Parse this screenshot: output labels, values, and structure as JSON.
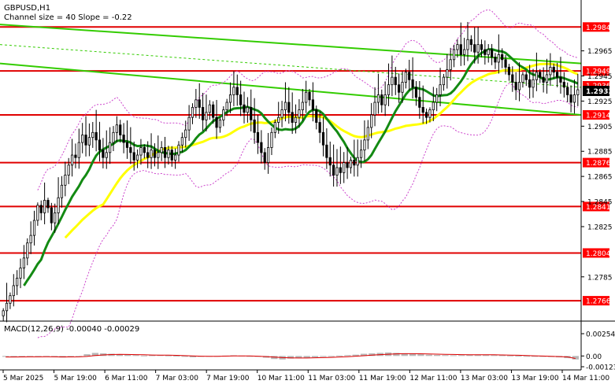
{
  "header": {
    "symbol_label": "GBPUSD,H1",
    "channel_label": "Channel size = 40 Slope = -0.22"
  },
  "colors": {
    "background": "#ffffff",
    "candle": "#000000",
    "level_line": "#e00000",
    "level_box": "#ff0000",
    "channel": "#33cc00",
    "ma_fast": "#138a13",
    "ma_slow": "#ffff00",
    "bollinger": "#cc44cc",
    "current_price_box": "#000000",
    "macd_hist": "#b8b8b8",
    "macd_signal": "#dd0000"
  },
  "chart_data": [
    {
      "type": "candlestick",
      "title": "GBPUSD,H1",
      "annotation": "Channel size = 40 Slope = -0.22",
      "ylim": [
        1.2751,
        1.3003
      ],
      "x_ticks": [
        "5 Mar 2025",
        "5 Mar 19:00",
        "6 Mar 11:00",
        "7 Mar 03:00",
        "7 Mar 19:00",
        "10 Mar 11:00",
        "11 Mar 03:00",
        "11 Mar 19:00",
        "12 Mar 11:00",
        "13 Mar 03:00",
        "13 Mar 19:00",
        "14 Mar 11:00"
      ],
      "y_ticks": [
        1.2965,
        1.2945,
        1.2925,
        1.2905,
        1.2885,
        1.2865,
        1.2845,
        1.2825,
        1.2785
      ],
      "levels": [
        1.2984,
        1.2949,
        1.2914,
        1.2876,
        1.2841,
        1.2804,
        1.2766
      ],
      "current_price": 1.2933,
      "hidden_price": 1.2936,
      "close_series": [
        1.2758,
        1.2764,
        1.277,
        1.2778,
        1.2784,
        1.2792,
        1.28,
        1.2812,
        1.2818,
        1.283,
        1.2842,
        1.2836,
        1.2846,
        1.284,
        1.2828,
        1.2836,
        1.2848,
        1.2858,
        1.2866,
        1.2874,
        1.2882,
        1.288,
        1.2892,
        1.2898,
        1.289,
        1.2896,
        1.29,
        1.2894,
        1.2886,
        1.288,
        1.2884,
        1.2892,
        1.29,
        1.2906,
        1.2898,
        1.2892,
        1.2888,
        1.2884,
        1.2878,
        1.2882,
        1.2888,
        1.2884,
        1.288,
        1.2886,
        1.288,
        1.2884,
        1.2888,
        1.288,
        1.2886,
        1.2878,
        1.2882,
        1.289,
        1.2896,
        1.2902,
        1.2912,
        1.292,
        1.2926,
        1.292,
        1.291,
        1.2916,
        1.2922,
        1.2912,
        1.2904,
        1.291,
        1.2918,
        1.2924,
        1.293,
        1.2936,
        1.293,
        1.2922,
        1.2916,
        1.292,
        1.291,
        1.29,
        1.2892,
        1.2884,
        1.2876,
        1.2888,
        1.29,
        1.2908,
        1.2912,
        1.2918,
        1.2924,
        1.2916,
        1.2908,
        1.2912,
        1.2918,
        1.2924,
        1.2932,
        1.2926,
        1.2918,
        1.2908,
        1.29,
        1.289,
        1.288,
        1.2874,
        1.2866,
        1.2872,
        1.2868,
        1.2876,
        1.2872,
        1.2878,
        1.2874,
        1.288,
        1.2886,
        1.2894,
        1.2904,
        1.2914,
        1.2924,
        1.293,
        1.2922,
        1.293,
        1.2938,
        1.2944,
        1.2938,
        1.2932,
        1.294,
        1.2948,
        1.2942,
        1.2936,
        1.2928,
        1.292,
        1.2916,
        1.2912,
        1.2918,
        1.2924,
        1.293,
        1.2938,
        1.2944,
        1.295,
        1.2958,
        1.2966,
        1.297,
        1.2962,
        1.2966,
        1.2974,
        1.297,
        1.2964,
        1.297,
        1.2966,
        1.2962,
        1.2966,
        1.296,
        1.2956,
        1.2962,
        1.2958,
        1.2952,
        1.2946,
        1.294,
        1.2934,
        1.294,
        1.2946,
        1.2942,
        1.2936,
        1.2942,
        1.2948,
        1.2944,
        1.294,
        1.2946,
        1.2952,
        1.2948,
        1.2944,
        1.294,
        1.2936,
        1.293,
        1.2924,
        1.293,
        1.2934
      ],
      "indicator": {
        "title": "MACD(12,26,9) -0.00040 -0.00029",
        "y_ticks": [
          0.00254,
          0.0,
          -0.00123
        ],
        "ylim": [
          -0.00123,
          0.00254
        ],
        "histogram": [
          -0.0001,
          -0.00015,
          -8e-05,
          -5e-05,
          -0.0001,
          -8e-05,
          -0.00012,
          -0.00018,
          -0.0001,
          -5e-05,
          0.0002,
          0.00035,
          0.0003,
          0.00025,
          0.0002,
          0.00015,
          0.0001,
          5e-05,
          8e-05,
          0.0001,
          6e-05,
          3e-05,
          -0.0001,
          -0.00015,
          -0.0001,
          -5e-05,
          -2e-05,
          4e-05,
          8e-05,
          4e-05,
          -4e-05,
          -0.0001,
          -0.0002,
          -0.00035,
          -0.0004,
          -0.0003,
          -0.00025,
          -0.0002,
          -0.00015,
          -0.0001,
          -5e-05,
          5e-05,
          0.0001,
          0.00015,
          0.00025,
          0.0003,
          0.00035,
          0.0004,
          0.00035,
          0.0003,
          0.00025,
          0.0002,
          0.00015,
          0.00012,
          0.0001,
          8e-05,
          0.0001,
          0.00012,
          0.00015,
          0.00012,
          0.0001,
          8e-05,
          5e-05,
          2e-05,
          -5e-05,
          -8e-05,
          -0.0001,
          -0.00012,
          -0.00015,
          -0.00025,
          -0.0004
        ],
        "signal": [
          -0.00012,
          -0.00012,
          -0.00011,
          -0.0001,
          -0.0001,
          -9e-05,
          -0.0001,
          -0.00011,
          -0.00011,
          -0.0001,
          -5e-05,
          5e-05,
          0.00012,
          0.00016,
          0.00018,
          0.00017,
          0.00015,
          0.00013,
          0.00011,
          0.0001,
          9e-05,
          7e-05,
          4e-05,
          0.0,
          -3e-05,
          -4e-05,
          -4e-05,
          -2e-05,
          0.0,
          1e-05,
          0.0,
          -3e-05,
          -7e-05,
          -0.00013,
          -0.00019,
          -0.00022,
          -0.00023,
          -0.00023,
          -0.00021,
          -0.00019,
          -0.00016,
          -0.00012,
          -8e-05,
          -3e-05,
          3e-05,
          9e-05,
          0.00015,
          0.0002,
          0.00024,
          0.00026,
          0.00026,
          0.00025,
          0.00023,
          0.00021,
          0.00019,
          0.00017,
          0.00015,
          0.00014,
          0.00014,
          0.00014,
          0.00013,
          0.00012,
          0.0001,
          8e-05,
          5e-05,
          2e-05,
          -1e-05,
          -4e-05,
          -7e-05,
          -0.00011,
          -0.00029
        ]
      }
    }
  ]
}
